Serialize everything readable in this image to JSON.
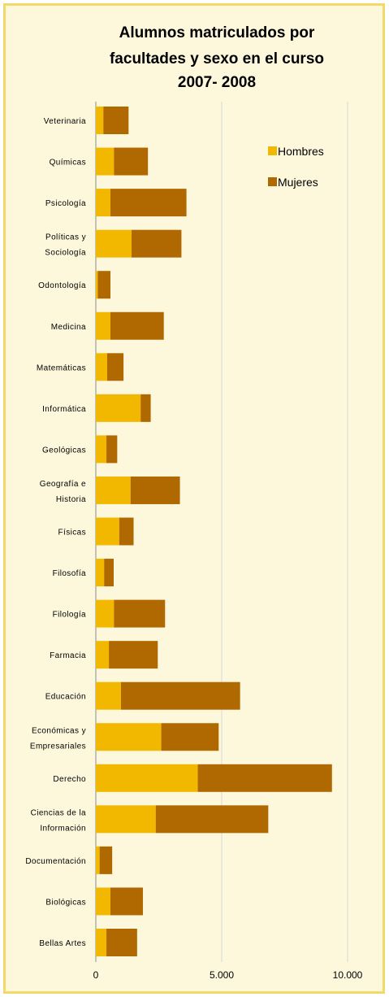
{
  "chart_data": {
    "type": "bar",
    "orientation": "horizontal",
    "stacked": true,
    "title_lines": [
      "Alumnos matriculados por",
      "facultades y sexo en el curso",
      "2007- 2008"
    ],
    "categories": [
      [
        "Veterinaria"
      ],
      [
        "Químicas"
      ],
      [
        "Psicología"
      ],
      [
        "Políticas y",
        "Sociología"
      ],
      [
        "Odontología"
      ],
      [
        "Medicina"
      ],
      [
        "Matemáticas"
      ],
      [
        "Informática"
      ],
      [
        "Geológicas"
      ],
      [
        "Geografía e",
        "Historia"
      ],
      [
        "Físicas"
      ],
      [
        "Filosofía"
      ],
      [
        "Filología"
      ],
      [
        "Farmacia"
      ],
      [
        "Educación"
      ],
      [
        "Económicas y",
        "Empresariales"
      ],
      [
        "Derecho"
      ],
      [
        "Ciencias de la",
        "Información"
      ],
      [
        "Documentación"
      ],
      [
        "Biológicas"
      ],
      [
        "Bellas Artes"
      ]
    ],
    "series": [
      {
        "name": "Hombres",
        "color": "#f2b800",
        "values": [
          300,
          720,
          580,
          1420,
          80,
          580,
          450,
          1780,
          420,
          1380,
          930,
          330,
          720,
          520,
          1000,
          2600,
          4050,
          2380,
          150,
          580,
          420
        ]
      },
      {
        "name": "Mujeres",
        "color": "#b06800",
        "values": [
          1000,
          1350,
          3020,
          1980,
          500,
          2120,
          650,
          400,
          430,
          1960,
          570,
          380,
          2030,
          1940,
          4730,
          2280,
          5330,
          4470,
          500,
          1290,
          1220
        ]
      }
    ],
    "x_ticks": [
      "0",
      "5.000",
      "10.000"
    ],
    "xlim": [
      0,
      10000
    ],
    "grid": "vertical",
    "legend_position": "top-right"
  }
}
